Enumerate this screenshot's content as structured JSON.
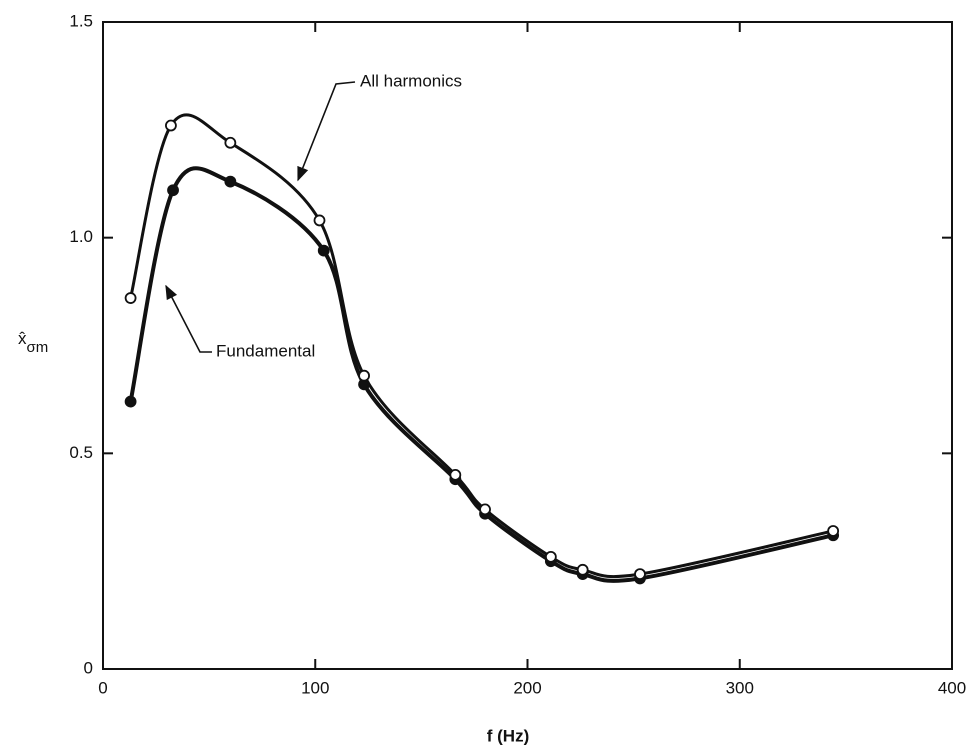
{
  "chart_data": {
    "type": "line",
    "xlabel": "f (Hz)",
    "ylabel": "x̂",
    "ylabel_subscript": "σm",
    "xlim": [
      0,
      400
    ],
    "xticks": [
      0,
      100,
      200,
      300,
      400
    ],
    "ylim": [
      0,
      1.5
    ],
    "yticks": [
      0,
      0.5,
      {
        "value": 1,
        "label": "1.0"
      },
      1.5
    ],
    "grid": false,
    "series": [
      {
        "name": "Fundamental",
        "color": "#111111",
        "marker": "filled",
        "x": [
          13,
          33,
          60,
          104,
          123,
          166,
          180,
          211,
          226,
          253,
          344
        ],
        "values": [
          0.62,
          1.11,
          1.13,
          0.97,
          0.66,
          0.44,
          0.36,
          0.25,
          0.22,
          0.21,
          0.31
        ]
      },
      {
        "name": "All harmonics",
        "color": "#111111",
        "marker": "open",
        "x": [
          13,
          32,
          60,
          102,
          123,
          166,
          180,
          211,
          226,
          253,
          344
        ],
        "values": [
          0.86,
          1.26,
          1.22,
          1.04,
          0.68,
          0.45,
          0.37,
          0.26,
          0.23,
          0.22,
          0.32
        ]
      }
    ]
  }
}
